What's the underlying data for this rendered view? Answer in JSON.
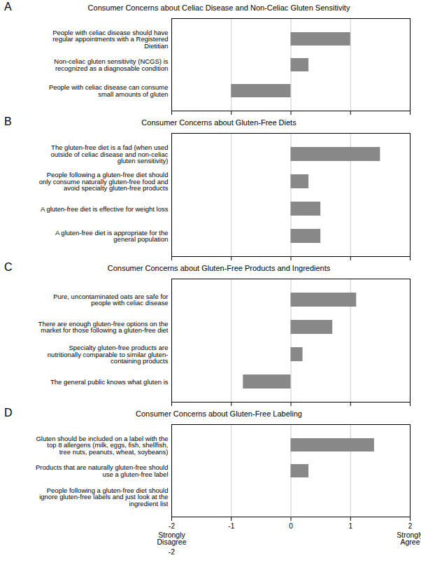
{
  "chart_data": [
    {
      "type": "bar",
      "orientation": "horizontal",
      "title": "Consumer Concerns about Celiac Disease and Non-Celiac Gluten Sensitivity",
      "annotations": [
        {
          "text": "A"
        }
      ],
      "categories": [
        "People with celiac disease should have\nregular appointments with a Registered\nDietitian",
        "Non-celiac gluten sensitivity (NCGS) is\nrecognized as a diagnosable condition",
        "People with celiac disease can consume\nsmall amounts of gluten"
      ],
      "values": [
        1.0,
        0.3,
        -1.0
      ],
      "color": "#888888",
      "xlim": [
        -2.0,
        2.0
      ],
      "xticks": [
        -2,
        -1,
        0,
        1,
        2
      ],
      "grid": true,
      "tick_labels": "y"
    },
    {
      "type": "bar",
      "orientation": "horizontal",
      "title": "Consumer Concerns about Gluten-Free Diets",
      "annotations": [
        {
          "text": "B"
        }
      ],
      "categories": [
        "The gluten-free diet is a fad (when used\noutside of celiac disease and non-celiac\ngluten sensitivity)",
        "People following a gluten-free diet should\nonly consume naturally gluten-free food and\navoid specialty gluten-free products",
        "A gluten-free diet is effective for weight loss",
        "A gluten-free diet is appropriate for the\ngeneral population"
      ],
      "values": [
        1.5,
        0.3,
        0.5,
        0.5
      ],
      "color": "#888888",
      "xlim": [
        -2.0,
        2.0
      ],
      "xticks": [
        -2,
        -1,
        0,
        1,
        2
      ],
      "grid": true,
      "tick_labels": "y"
    },
    {
      "type": "bar",
      "orientation": "horizontal",
      "title": "Consumer Concerns about Gluten-Free Products and Ingredients",
      "annotations": [
        {
          "text": "C"
        }
      ],
      "categories": [
        "Pure, uncontaminated oats are safe for\npeople with celiac disease",
        "There are enough gluten-free options on the\nmarket for those following a gluten-free diet",
        "Specialty gluten-free products are\nnutritionally comparable to similar gluten-\ncontaining products",
        "The general public knows what gluten is"
      ],
      "values": [
        1.1,
        0.7,
        0.2,
        -0.8
      ],
      "color": "#888888",
      "xlim": [
        -2.0,
        2.0
      ],
      "xticks": [
        -2,
        -1,
        0,
        1,
        2
      ],
      "grid": true,
      "tick_labels": "y"
    },
    {
      "type": "bar",
      "orientation": "horizontal",
      "title": "Consumer Concerns about Gluten-Free Labeling",
      "annotations": [
        {
          "text": "D"
        },
        {
          "text": "Strongly\nDisagree",
          "x": -2
        },
        {
          "text": "Strongly\nAgree",
          "x": 2
        },
        {
          "text": "-2",
          "x": -2
        }
      ],
      "categories": [
        "Gluten should be included on a label with the\ntop 8 allergens (milk, eggs, fish, shellfish,\ntree nuts, peanuts, wheat, soybeans)",
        "Products that are naturally gluten-free should\nuse a gluten-free label",
        "People following a gluten-free diet should\nignore gluten-free labels and just look at the\ningredient list"
      ],
      "values": [
        1.4,
        0.3,
        0.0
      ],
      "color": "#888888",
      "xlim": [
        -2.0,
        2.0
      ],
      "xticks": [
        -2,
        -1,
        0,
        1,
        2
      ],
      "grid": true
    }
  ]
}
